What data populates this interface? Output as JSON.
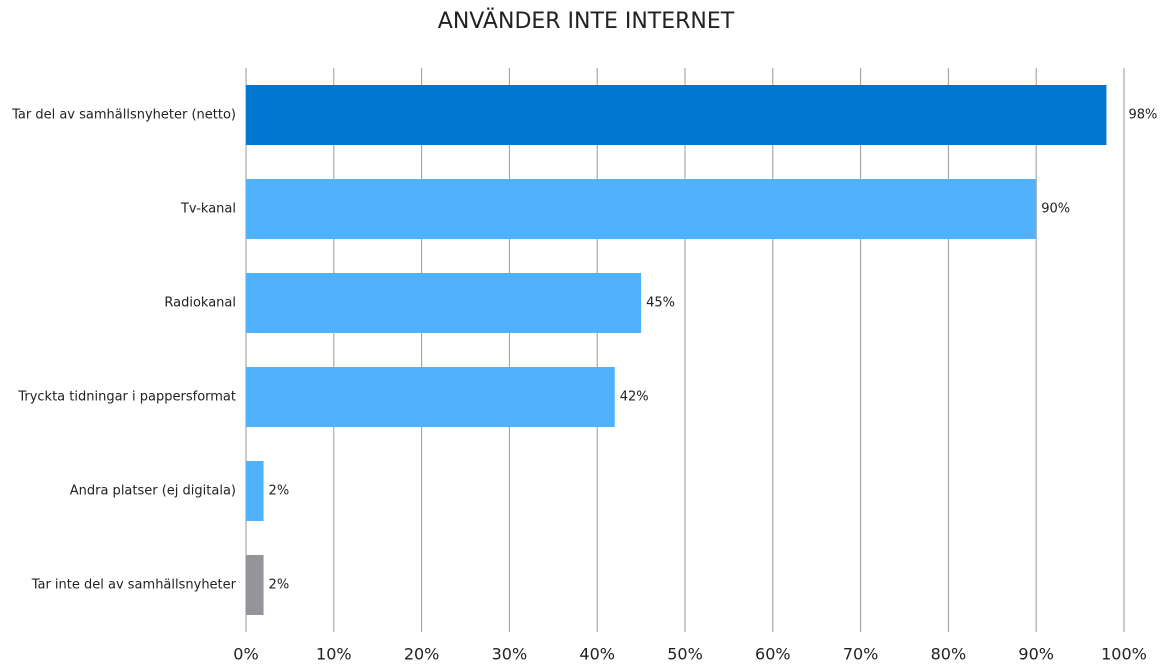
{
  "chart_data": {
    "type": "hbar",
    "title": "ANVÄNDER INTE INTERNET",
    "categories": [
      "Tar del av samhällsnyheter (netto)",
      "Tv-kanal",
      "Radiokanal",
      "Tryckta tidningar i pappersformat",
      "Andra platser (ej digitala)",
      "Tar inte del av samhällsnyheter"
    ],
    "values": [
      98,
      90,
      45,
      42,
      2,
      2
    ],
    "value_labels": [
      "98%",
      "90%",
      "45%",
      "42%",
      "2%",
      "2%"
    ],
    "colors": [
      "#0277d0",
      "#50b1fc",
      "#50b1fc",
      "#50b1fc",
      "#50b1fc",
      "#939598"
    ],
    "xlim": [
      0,
      100
    ],
    "xticks": [
      {
        "value": 0,
        "label": "0%"
      },
      {
        "value": 10,
        "label": "10%"
      },
      {
        "value": 20,
        "label": "20%"
      },
      {
        "value": 30,
        "label": "30%"
      },
      {
        "value": 40,
        "label": "40%"
      },
      {
        "value": 50,
        "label": "50%"
      },
      {
        "value": 60,
        "label": "60%"
      },
      {
        "value": 70,
        "label": "70%"
      },
      {
        "value": 80,
        "label": "80%"
      },
      {
        "value": 90,
        "label": "90%"
      },
      {
        "value": 100,
        "label": "100%"
      }
    ],
    "grid": true
  }
}
